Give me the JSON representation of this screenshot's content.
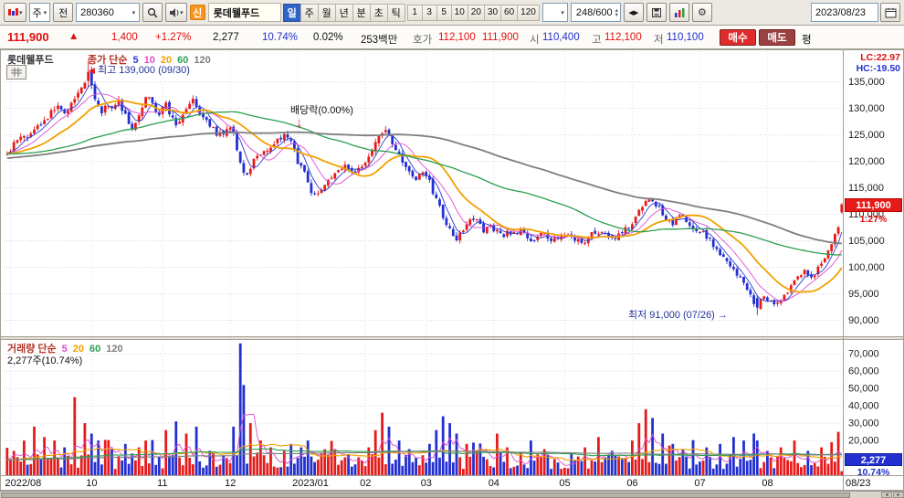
{
  "toolbar": {
    "period_combo": "주",
    "jeon_label": "전",
    "code_input": "280360",
    "new_badge": "신",
    "stock_name": "롯데웰푸드",
    "period_tabs": [
      "일",
      "주",
      "월",
      "년",
      "분",
      "초",
      "틱"
    ],
    "active_tab": "일",
    "interval_buttons": [
      "1",
      "3",
      "5",
      "10",
      "20",
      "30",
      "60",
      "120"
    ],
    "counter": "248/600",
    "date": "2023/08/23"
  },
  "quotebar": {
    "price": "111,900",
    "direction": "▲",
    "change": "1,400",
    "change_pct": "+1.27%",
    "volume": "2,277",
    "volume_ratio": "10.74%",
    "turnover": "0.02%",
    "amount": "253백만",
    "hoga_label": "호가",
    "ask": "112,100",
    "bid": "111,900",
    "open_label": "시",
    "open": "110,400",
    "high_label": "고",
    "high": "112,100",
    "low_label": "저",
    "low": "110,100",
    "buy_label": "매수",
    "sell_label": "매도",
    "avg_label": "평"
  },
  "price_pane": {
    "stock_label": "롯데웰푸드",
    "legend_label": "종가 단순",
    "lc_label": "LC:22.97",
    "hc_label": "HC:-19.50",
    "annotations": {
      "high": "최고 139,000 (09/30)",
      "ex_dividend": "배당락(0.00%)",
      "low": "최저 91,000 (07/26)"
    },
    "current_price": "111,900",
    "current_pct": "1.27%"
  },
  "volume_pane": {
    "legend_label": "거래량 단순",
    "current_text": "2,277주(10.74%)",
    "current_volume": "2,277",
    "current_ratio": "10.74%"
  },
  "date_axis": {
    "labels": [
      {
        "label": "2022/08",
        "index": 1
      },
      {
        "label": "10",
        "index": 25
      },
      {
        "label": "11",
        "index": 46
      },
      {
        "label": "12",
        "index": 66
      },
      {
        "label": "2023/01",
        "index": 86
      },
      {
        "label": "02",
        "index": 106
      },
      {
        "label": "03",
        "index": 124
      },
      {
        "label": "04",
        "index": 144
      },
      {
        "label": "05",
        "index": 165
      },
      {
        "label": "06",
        "index": 185
      },
      {
        "label": "07",
        "index": 205
      },
      {
        "label": "08",
        "index": 225
      }
    ],
    "end_label": "08/23"
  },
  "chart_data": {
    "type": "candlestick",
    "symbol": "280360",
    "name": "롯데웰푸드",
    "interval": "일",
    "visible_bars": 248,
    "y_axis": {
      "min": 87000,
      "max": 140800,
      "ticks": [
        90000,
        95000,
        100000,
        105000,
        110000,
        115000,
        120000,
        125000,
        130000,
        135000
      ]
    },
    "volume_axis": {
      "max": 78000,
      "ticks": [
        10000,
        20000,
        30000,
        40000,
        50000,
        60000,
        70000
      ]
    },
    "colors": {
      "up": "#e51b1b",
      "down": "#2330cf"
    },
    "ma_periods": [
      {
        "period": 5,
        "color": "#2a3bd6",
        "width": 0.9
      },
      {
        "period": 10,
        "color": "#df4cd4",
        "width": 0.9
      },
      {
        "period": 20,
        "color": "#f2a100",
        "width": 1.8
      },
      {
        "period": 60,
        "color": "#2b9e52",
        "width": 1.3
      },
      {
        "period": 120,
        "color": "#7e7e7e",
        "width": 1.8
      }
    ],
    "vol_ma_periods": [
      {
        "period": 5,
        "color": "#df4cd4",
        "width": 0.9
      },
      {
        "period": 20,
        "color": "#f2a100",
        "width": 1.1
      },
      {
        "period": 60,
        "color": "#2b9e52",
        "width": 1.1
      },
      {
        "period": 120,
        "color": "#7e7e7e",
        "width": 1.1
      }
    ],
    "key_points": {
      "highest": {
        "index": 24,
        "price": 139000,
        "open": 135200,
        "close": 136900,
        "low": 134000,
        "label_date": "09/30"
      },
      "lowest": {
        "index": 222,
        "price": 91000,
        "open": 94200,
        "close": 92400,
        "high": 94800,
        "label_date": "07/26"
      },
      "last": {
        "open": 110400,
        "high": 112100,
        "low": 110100,
        "close": 111900,
        "volume": 2277
      }
    },
    "pre_anchors": [
      [
        -120,
        117000
      ],
      [
        -90,
        120000
      ],
      [
        -60,
        122500
      ],
      [
        -30,
        120500
      ]
    ],
    "price_anchors": [
      [
        0,
        122000
      ],
      [
        3,
        123500
      ],
      [
        6,
        125000
      ],
      [
        9,
        127000
      ],
      [
        12,
        128500
      ],
      [
        15,
        130500
      ],
      [
        17,
        129000
      ],
      [
        20,
        132000
      ],
      [
        23,
        135000
      ],
      [
        24,
        136800
      ],
      [
        26,
        132000
      ],
      [
        28,
        129500
      ],
      [
        31,
        130500
      ],
      [
        33,
        132000
      ],
      [
        35,
        128500
      ],
      [
        37,
        126000
      ],
      [
        39,
        129000
      ],
      [
        41,
        132500
      ],
      [
        43,
        131000
      ],
      [
        45,
        129000
      ],
      [
        47,
        130500
      ],
      [
        50,
        127500
      ],
      [
        53,
        129500
      ],
      [
        55,
        131500
      ],
      [
        57,
        129000
      ],
      [
        60,
        126500
      ],
      [
        63,
        125000
      ],
      [
        65,
        126500
      ],
      [
        67,
        125000
      ],
      [
        69,
        119500
      ],
      [
        71,
        117500
      ],
      [
        73,
        120000
      ],
      [
        76,
        122000
      ],
      [
        79,
        123500
      ],
      [
        82,
        124500
      ],
      [
        84,
        123500
      ],
      [
        86,
        120000
      ],
      [
        88,
        117500
      ],
      [
        90,
        114500
      ],
      [
        92,
        113500
      ],
      [
        94,
        115500
      ],
      [
        97,
        117500
      ],
      [
        100,
        119000
      ],
      [
        103,
        118000
      ],
      [
        105,
        119000
      ],
      [
        107,
        120500
      ],
      [
        109,
        123500
      ],
      [
        111,
        126000
      ],
      [
        113,
        124500
      ],
      [
        115,
        122500
      ],
      [
        117,
        120000
      ],
      [
        119,
        118000
      ],
      [
        121,
        117000
      ],
      [
        123,
        117500
      ],
      [
        125,
        116000
      ],
      [
        127,
        113000
      ],
      [
        129,
        109500
      ],
      [
        131,
        107000
      ],
      [
        133,
        105500
      ],
      [
        135,
        107500
      ],
      [
        137,
        109500
      ],
      [
        139,
        108500
      ],
      [
        141,
        107000
      ],
      [
        143,
        107500
      ],
      [
        146,
        106000
      ],
      [
        149,
        106500
      ],
      [
        152,
        107000
      ],
      [
        155,
        105000
      ],
      [
        158,
        106500
      ],
      [
        161,
        105500
      ],
      [
        164,
        106000
      ],
      [
        167,
        105500
      ],
      [
        170,
        104500
      ],
      [
        173,
        106500
      ],
      [
        176,
        107000
      ],
      [
        179,
        105000
      ],
      [
        182,
        106500
      ],
      [
        185,
        108500
      ],
      [
        187,
        110500
      ],
      [
        189,
        112000
      ],
      [
        191,
        112500
      ],
      [
        193,
        111000
      ],
      [
        195,
        109500
      ],
      [
        197,
        108500
      ],
      [
        199,
        110000
      ],
      [
        201,
        109000
      ],
      [
        203,
        107500
      ],
      [
        205,
        107000
      ],
      [
        208,
        105000
      ],
      [
        211,
        102500
      ],
      [
        214,
        100500
      ],
      [
        217,
        98000
      ],
      [
        219,
        96000
      ],
      [
        221,
        93500
      ],
      [
        222,
        92500
      ],
      [
        224,
        94500
      ],
      [
        226,
        94000
      ],
      [
        228,
        93000
      ],
      [
        230,
        94500
      ],
      [
        232,
        96500
      ],
      [
        234,
        98000
      ],
      [
        236,
        99000
      ],
      [
        238,
        98000
      ],
      [
        240,
        100000
      ],
      [
        242,
        101500
      ],
      [
        244,
        104000
      ],
      [
        246,
        108000
      ],
      [
        247,
        111500
      ]
    ],
    "volume_spikes": [
      [
        2,
        14000
      ],
      [
        5,
        20000
      ],
      [
        8,
        28000
      ],
      [
        11,
        22000
      ],
      [
        14,
        20000
      ],
      [
        17,
        16000
      ],
      [
        20,
        45000
      ],
      [
        23,
        30000
      ],
      [
        25,
        24000
      ],
      [
        27,
        20000
      ],
      [
        31,
        15000
      ],
      [
        35,
        18000
      ],
      [
        39,
        16000
      ],
      [
        41,
        20000
      ],
      [
        47,
        26000
      ],
      [
        50,
        31000
      ],
      [
        53,
        24000
      ],
      [
        56,
        28000
      ],
      [
        60,
        14000
      ],
      [
        67,
        28000
      ],
      [
        69,
        76000
      ],
      [
        70,
        52000
      ],
      [
        72,
        30000
      ],
      [
        75,
        20000
      ],
      [
        78,
        16000
      ],
      [
        82,
        14000
      ],
      [
        84,
        18000
      ],
      [
        87,
        16000
      ],
      [
        89,
        20000
      ],
      [
        93,
        13000
      ],
      [
        97,
        15000
      ],
      [
        101,
        12000
      ],
      [
        107,
        16000
      ],
      [
        109,
        26000
      ],
      [
        111,
        36000
      ],
      [
        113,
        28000
      ],
      [
        116,
        20000
      ],
      [
        119,
        15000
      ],
      [
        125,
        18000
      ],
      [
        127,
        26000
      ],
      [
        129,
        34000
      ],
      [
        131,
        30000
      ],
      [
        133,
        24000
      ],
      [
        136,
        18000
      ],
      [
        139,
        14000
      ],
      [
        145,
        24000
      ],
      [
        148,
        16000
      ],
      [
        152,
        13000
      ],
      [
        155,
        20000
      ],
      [
        159,
        15000
      ],
      [
        167,
        13000
      ],
      [
        171,
        16000
      ],
      [
        175,
        22000
      ],
      [
        179,
        14000
      ],
      [
        185,
        20000
      ],
      [
        187,
        30000
      ],
      [
        189,
        38000
      ],
      [
        191,
        33000
      ],
      [
        194,
        24000
      ],
      [
        197,
        18000
      ],
      [
        200,
        15000
      ],
      [
        207,
        16000
      ],
      [
        211,
        18000
      ],
      [
        215,
        22000
      ],
      [
        218,
        20000
      ],
      [
        221,
        24000
      ],
      [
        222,
        20000
      ],
      [
        225,
        14000
      ],
      [
        229,
        16000
      ],
      [
        233,
        20000
      ],
      [
        237,
        14000
      ],
      [
        241,
        16000
      ],
      [
        244,
        19000
      ],
      [
        246,
        25000
      ],
      [
        247,
        2277
      ]
    ]
  }
}
